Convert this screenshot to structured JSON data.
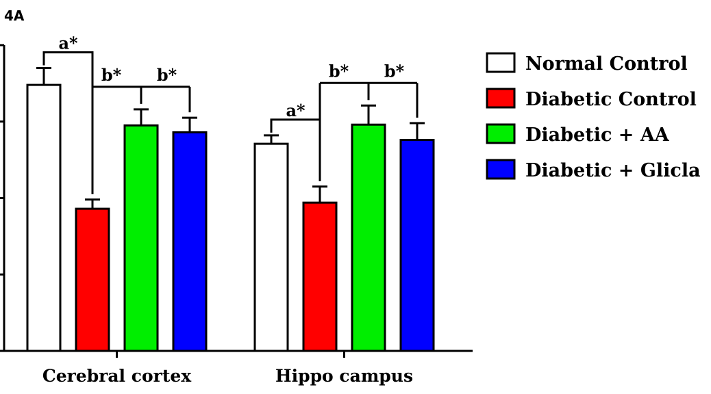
{
  "panel_label": "4A",
  "colors": {
    "Normal Control": "#ffffff",
    "Diabetic Control": "#ff0000",
    "Diabetic + AA": "#00ee00",
    "Diabetic + Glicla": "#0000ff"
  },
  "chart_data": {
    "type": "bar",
    "categories": [
      "Cerebral cortex",
      "Hippo campus"
    ],
    "series": [
      {
        "name": "Normal Control",
        "values": [
          3.48,
          2.71
        ],
        "errors": [
          0.22,
          0.11
        ]
      },
      {
        "name": "Diabetic Control",
        "values": [
          1.86,
          1.94
        ],
        "errors": [
          0.12,
          0.21
        ]
      },
      {
        "name": "Diabetic + AA",
        "values": [
          2.95,
          2.96
        ],
        "errors": [
          0.21,
          0.25
        ]
      },
      {
        "name": "Diabetic + Glicla",
        "values": [
          2.86,
          2.76
        ],
        "errors": [
          0.19,
          0.22
        ]
      }
    ],
    "ylim": [
      0,
      4
    ],
    "grid": false,
    "legend_position": "right",
    "annotations": [
      {
        "text": "a*",
        "category": "Cerebral cortex",
        "from": "Normal Control",
        "to": [
          "Diabetic Control"
        ]
      },
      {
        "text": "b*",
        "category": "Cerebral cortex",
        "from": "Diabetic Control",
        "to": [
          "Diabetic + AA"
        ]
      },
      {
        "text": "b*",
        "category": "Cerebral cortex",
        "from": "Diabetic Control",
        "to": [
          "Diabetic + Glicla"
        ]
      },
      {
        "text": "a*",
        "category": "Hippo campus",
        "from": "Normal Control",
        "to": [
          "Diabetic Control"
        ]
      },
      {
        "text": "b*",
        "category": "Hippo campus",
        "from": "Diabetic Control",
        "to": [
          "Diabetic + AA"
        ]
      },
      {
        "text": "b*",
        "category": "Hippo campus",
        "from": "Diabetic Control",
        "to": [
          "Diabetic + Glicla"
        ]
      }
    ]
  }
}
